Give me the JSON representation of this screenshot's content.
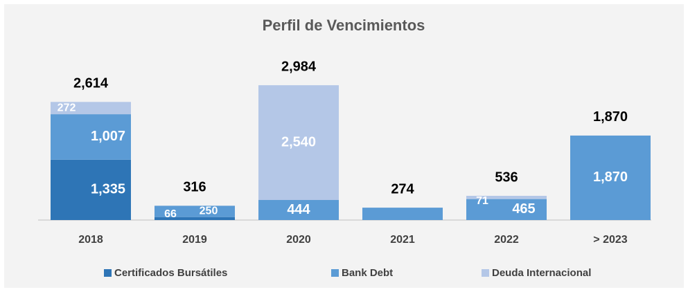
{
  "chart_data": {
    "type": "stacked_bar",
    "title": "Perfil de Vencimientos",
    "categories": [
      "2018",
      "2019",
      "2020",
      "2021",
      "2022",
      "> 2023"
    ],
    "series": [
      {
        "name": "Certificados Bursátiles",
        "color": "#2e75b6",
        "values": [
          1335,
          66,
          null,
          null,
          null,
          null
        ],
        "value_labels": [
          "1,335",
          "66",
          null,
          null,
          null,
          null
        ]
      },
      {
        "name": "Bank Debt",
        "color": "#5b9bd5",
        "values": [
          1007,
          250,
          444,
          274,
          465,
          1870
        ],
        "value_labels": [
          "1,007",
          "250",
          "444",
          null,
          "465",
          "1,870"
        ]
      },
      {
        "name": "Deuda Internacional",
        "color": "#b4c7e7",
        "values": [
          272,
          null,
          2540,
          null,
          71,
          null
        ],
        "value_labels": [
          "272",
          null,
          "2,540",
          null,
          "71",
          null
        ]
      }
    ],
    "totals": [
      2614,
      316,
      2984,
      274,
      536,
      1870
    ],
    "total_labels": [
      "2,614",
      "316",
      "2,984",
      "274",
      "536",
      "1,870"
    ],
    "ylim": [
      0,
      3400
    ],
    "legend": "bottom"
  }
}
